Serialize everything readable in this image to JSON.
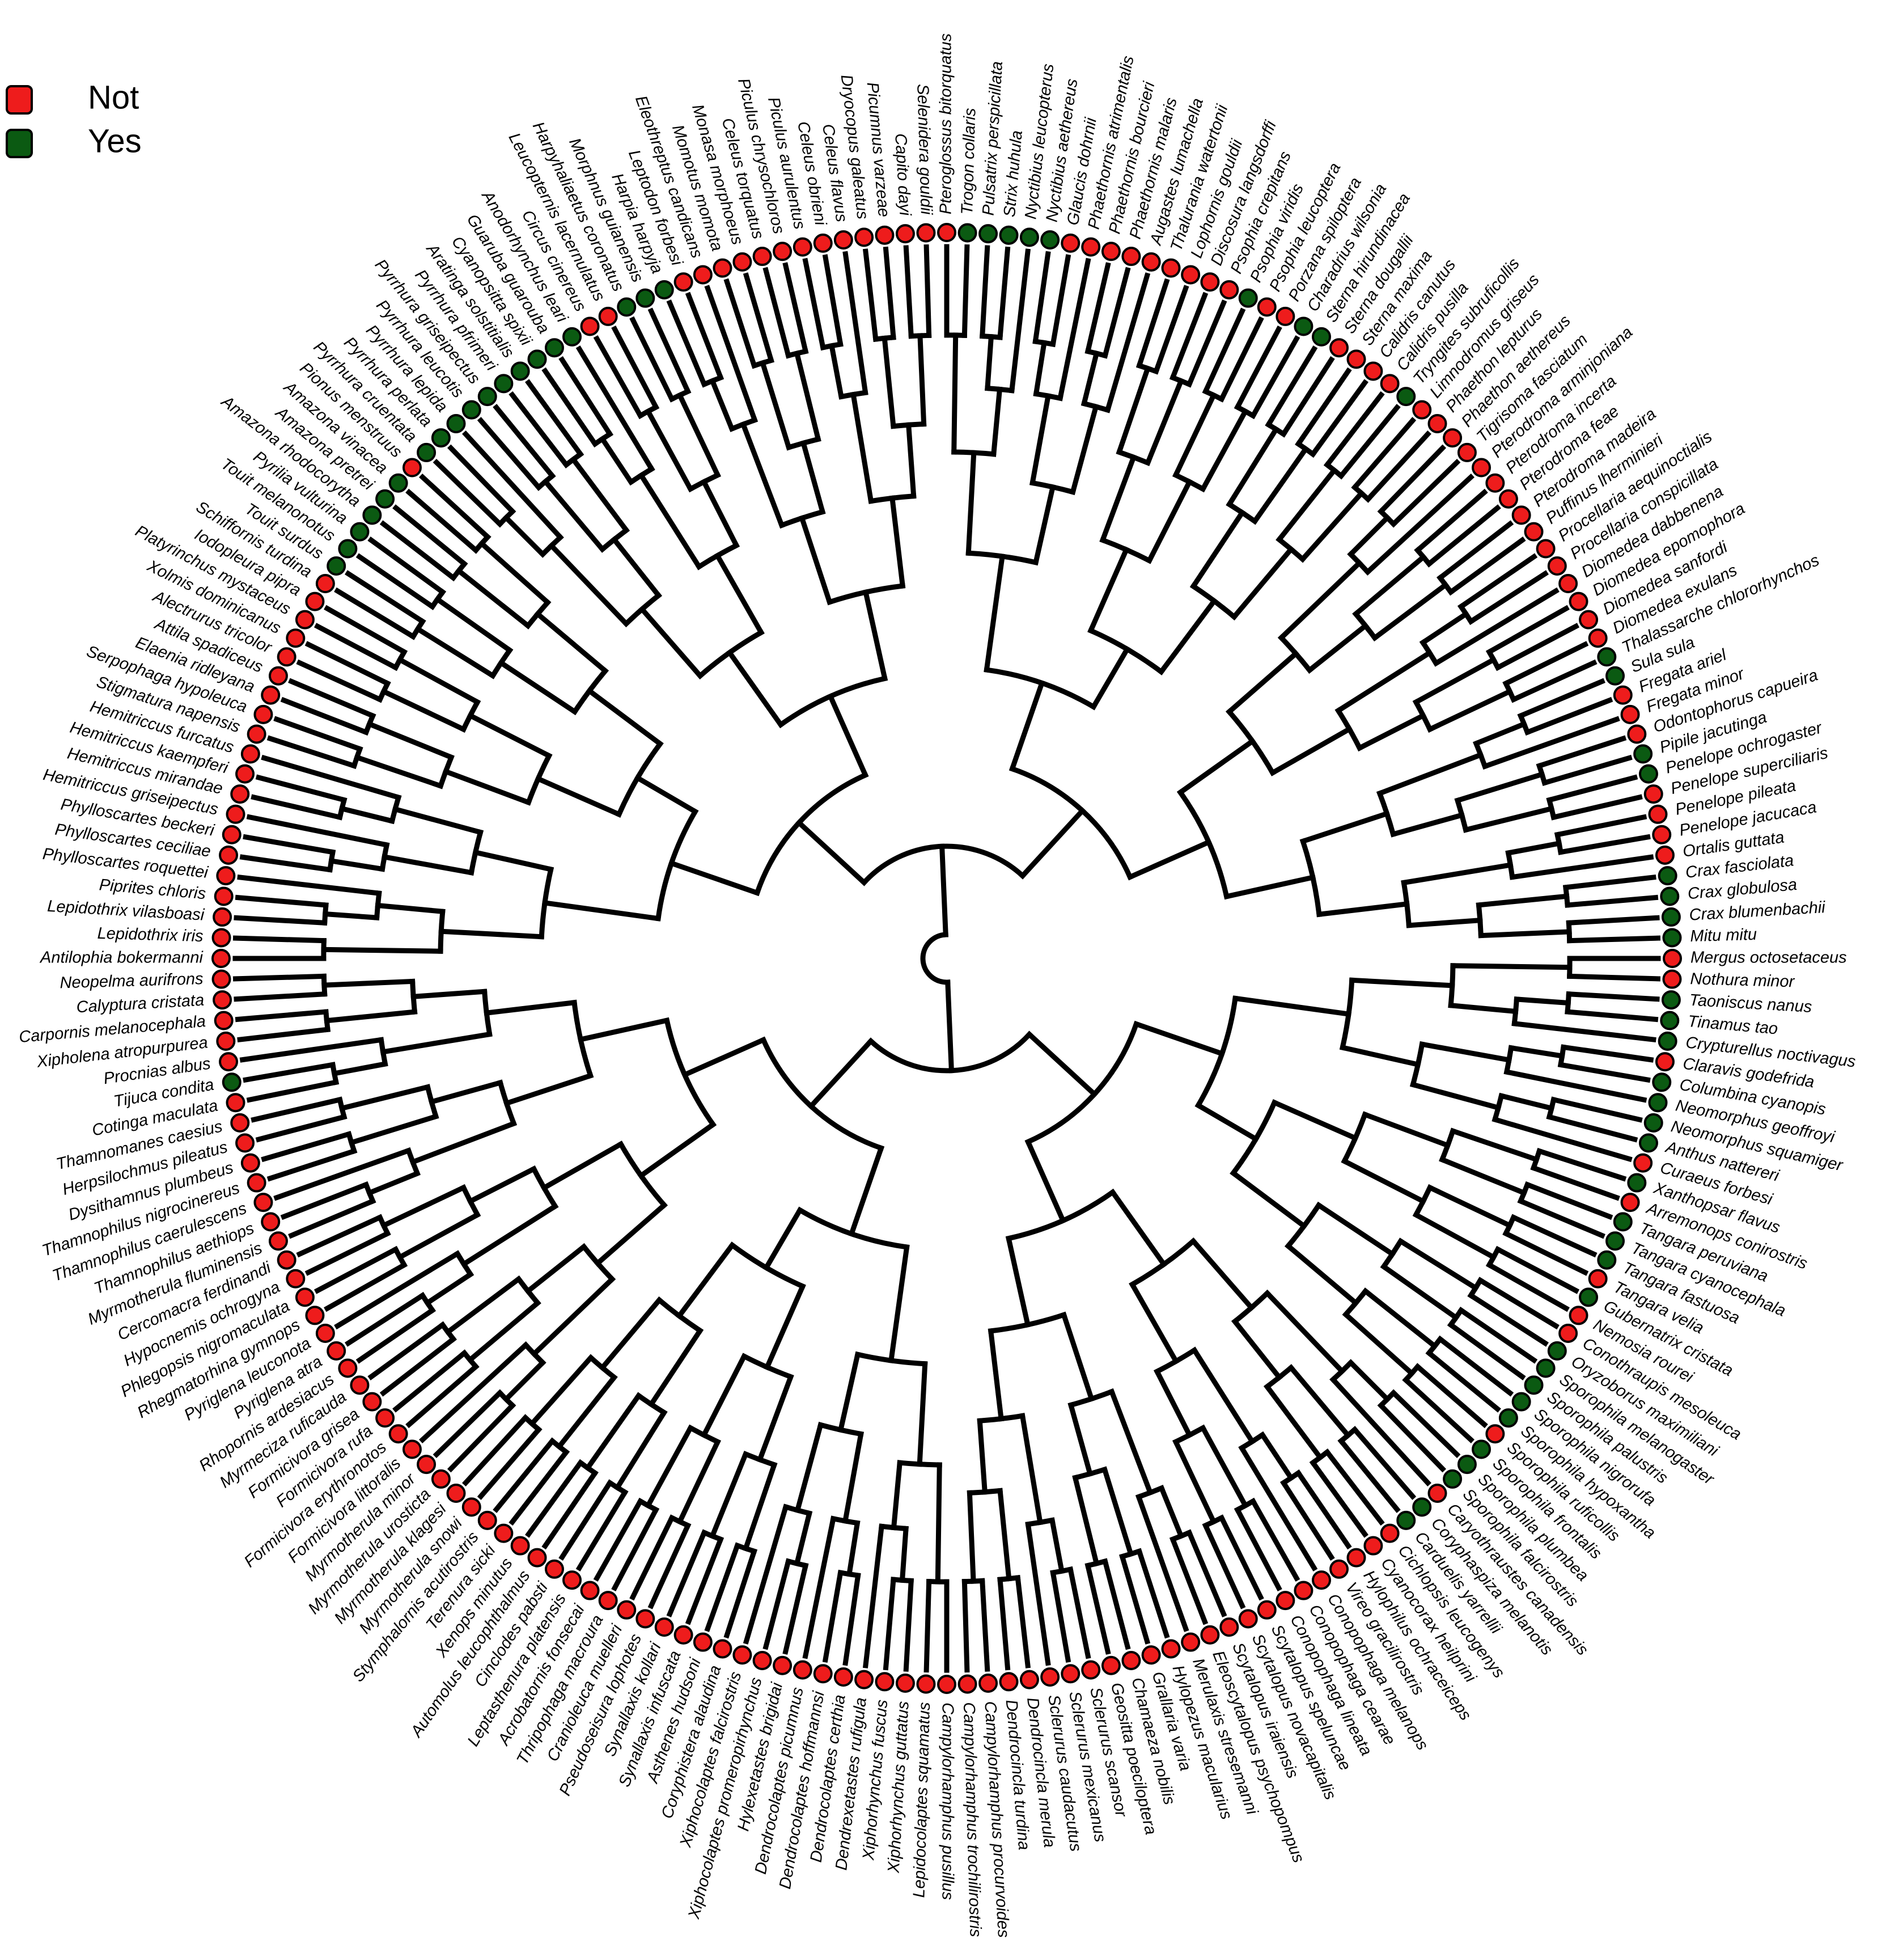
{
  "legend": {
    "items": [
      {
        "label": "Not",
        "color": "#ee1c1c"
      },
      {
        "label": "Yes",
        "color": "#0b5a12"
      }
    ]
  },
  "tips": [
    {
      "name": "Mergus octosetaceus",
      "state": "Not"
    },
    {
      "name": "Nothura minor",
      "state": "Not"
    },
    {
      "name": "Taoniscus nanus",
      "state": "Yes"
    },
    {
      "name": "Tinamus tao",
      "state": "Yes"
    },
    {
      "name": "Crypturellus noctivagus",
      "state": "Yes"
    },
    {
      "name": "Claravis godefrida",
      "state": "Not"
    },
    {
      "name": "Columbina cyanopis",
      "state": "Yes"
    },
    {
      "name": "Neomorphus geoffroyi",
      "state": "Yes"
    },
    {
      "name": "Neomorphus squamiger",
      "state": "Yes"
    },
    {
      "name": "Anthus nattereri",
      "state": "Yes"
    },
    {
      "name": "Curaeus forbesi",
      "state": "Not"
    },
    {
      "name": "Xanthopsar flavus",
      "state": "Yes"
    },
    {
      "name": "Arremonops conirostris",
      "state": "Not"
    },
    {
      "name": "Tangara peruviana",
      "state": "Yes"
    },
    {
      "name": "Tangara cyanocephala",
      "state": "Yes"
    },
    {
      "name": "Tangara fastuosa",
      "state": "Yes"
    },
    {
      "name": "Tangara velia",
      "state": "Not"
    },
    {
      "name": "Gubernatrix cristata",
      "state": "Yes"
    },
    {
      "name": "Nemosia rourei",
      "state": "Not"
    },
    {
      "name": "Conothraupis mesoleuca",
      "state": "Not"
    },
    {
      "name": "Oryzoborus maximiliani",
      "state": "Yes"
    },
    {
      "name": "Sporophila melanogaster",
      "state": "Yes"
    },
    {
      "name": "Sporophila palustris",
      "state": "Yes"
    },
    {
      "name": "Sporophila nigrorufa",
      "state": "Yes"
    },
    {
      "name": "Sporophila hypoxantha",
      "state": "Yes"
    },
    {
      "name": "Sporophila ruficollis",
      "state": "Not"
    },
    {
      "name": "Sporophila frontalis",
      "state": "Yes"
    },
    {
      "name": "Sporophila plumbea",
      "state": "Yes"
    },
    {
      "name": "Sporophila falcirostris",
      "state": "Yes"
    },
    {
      "name": "Caryothraustes canadensis",
      "state": "Not"
    },
    {
      "name": "Coryphaspiza melanotis",
      "state": "Yes"
    },
    {
      "name": "Carduelis yarrellii",
      "state": "Yes"
    },
    {
      "name": "Cichlopsis leucogenys",
      "state": "Not"
    },
    {
      "name": "Cyanocorax heilprini",
      "state": "Not"
    },
    {
      "name": "Hylophilus ochraceiceps",
      "state": "Not"
    },
    {
      "name": "Vireo gracilirostris",
      "state": "Not"
    },
    {
      "name": "Conopophaga melanops",
      "state": "Not"
    },
    {
      "name": "Conopophaga cearae",
      "state": "Not"
    },
    {
      "name": "Conopophaga lineata",
      "state": "Not"
    },
    {
      "name": "Scytalopus speluncae",
      "state": "Not"
    },
    {
      "name": "Scytalopus novacapitalis",
      "state": "Not"
    },
    {
      "name": "Scytalopus iraiensis",
      "state": "Not"
    },
    {
      "name": "Eleoscytalopus psychopompus",
      "state": "Not"
    },
    {
      "name": "Merulaxis stresemanni",
      "state": "Not"
    },
    {
      "name": "Hylopezus macularius",
      "state": "Not"
    },
    {
      "name": "Grallaria varia",
      "state": "Not"
    },
    {
      "name": "Chamaeza nobilis",
      "state": "Not"
    },
    {
      "name": "Geositta poeciloptera",
      "state": "Not"
    },
    {
      "name": "Sclerurus scansor",
      "state": "Not"
    },
    {
      "name": "Sclerurus mexicanus",
      "state": "Not"
    },
    {
      "name": "Sclerurus caudacutus",
      "state": "Not"
    },
    {
      "name": "Dendrocincla merula",
      "state": "Not"
    },
    {
      "name": "Dendrocincla turdina",
      "state": "Not"
    },
    {
      "name": "Campylorhamphus procurvoides",
      "state": "Not"
    },
    {
      "name": "Campylorhamphus trochilirostris",
      "state": "Not"
    },
    {
      "name": "Campylorhamphus pusillus",
      "state": "Not"
    },
    {
      "name": "Lepidocolaptes squamatus",
      "state": "Not"
    },
    {
      "name": "Xiphorhynchus guttatus",
      "state": "Not"
    },
    {
      "name": "Xiphorhynchus fuscus",
      "state": "Not"
    },
    {
      "name": "Dendrexetastes rufigula",
      "state": "Not"
    },
    {
      "name": "Dendrocolaptes certhia",
      "state": "Not"
    },
    {
      "name": "Dendrocolaptes hoffmannsi",
      "state": "Not"
    },
    {
      "name": "Dendrocolaptes picumnus",
      "state": "Not"
    },
    {
      "name": "Hylexetastes brigidai",
      "state": "Not"
    },
    {
      "name": "Xiphocolaptes promeropirhynchus",
      "state": "Not"
    },
    {
      "name": "Xiphocolaptes falcirostris",
      "state": "Not"
    },
    {
      "name": "Coryphistera alaudina",
      "state": "Not"
    },
    {
      "name": "Asthenes hudsoni",
      "state": "Not"
    },
    {
      "name": "Synallaxis infuscata",
      "state": "Not"
    },
    {
      "name": "Synallaxis kollari",
      "state": "Not"
    },
    {
      "name": "Pseudoseisura lophotes",
      "state": "Not"
    },
    {
      "name": "Cranioleuca muelleri",
      "state": "Not"
    },
    {
      "name": "Thripophaga macroura",
      "state": "Not"
    },
    {
      "name": "Acrobatornis fonsecai",
      "state": "Not"
    },
    {
      "name": "Leptasthenura platensis",
      "state": "Not"
    },
    {
      "name": "Cinclodes pabsti",
      "state": "Not"
    },
    {
      "name": "Automolus leucophthalmus",
      "state": "Not"
    },
    {
      "name": "Xenops minutus",
      "state": "Not"
    },
    {
      "name": "Terenura sicki",
      "state": "Not"
    },
    {
      "name": "Stymphalornis acutirostris",
      "state": "Not"
    },
    {
      "name": "Myrmotherula snowi",
      "state": "Not"
    },
    {
      "name": "Myrmotherula klagesi",
      "state": "Not"
    },
    {
      "name": "Myrmotherula urosticta",
      "state": "Not"
    },
    {
      "name": "Myrmotherula minor",
      "state": "Not"
    },
    {
      "name": "Formicivora littoralis",
      "state": "Not"
    },
    {
      "name": "Formicivora erythronotos",
      "state": "Not"
    },
    {
      "name": "Formicivora rufa",
      "state": "Not"
    },
    {
      "name": "Formicivora grisea",
      "state": "Not"
    },
    {
      "name": "Myrmeciza ruficauda",
      "state": "Not"
    },
    {
      "name": "Rhopornis ardesiacus",
      "state": "Not"
    },
    {
      "name": "Pyriglena atra",
      "state": "Not"
    },
    {
      "name": "Pyriglena leuconota",
      "state": "Not"
    },
    {
      "name": "Rhegmatorhina gymnops",
      "state": "Not"
    },
    {
      "name": "Phlegopsis nigromaculata",
      "state": "Not"
    },
    {
      "name": "Hypocnemis ochrogyna",
      "state": "Not"
    },
    {
      "name": "Cercomacra ferdinandi",
      "state": "Not"
    },
    {
      "name": "Myrmotherula fluminensis",
      "state": "Not"
    },
    {
      "name": "Thamnophilus aethiops",
      "state": "Not"
    },
    {
      "name": "Thamnophilus caerulescens",
      "state": "Not"
    },
    {
      "name": "Thamnophilus nigrocinereus",
      "state": "Not"
    },
    {
      "name": "Dysithamnus plumbeus",
      "state": "Not"
    },
    {
      "name": "Herpsilochmus pileatus",
      "state": "Not"
    },
    {
      "name": "Thamnomanes caesius",
      "state": "Not"
    },
    {
      "name": "Cotinga maculata",
      "state": "Not"
    },
    {
      "name": "Tijuca condita",
      "state": "Yes"
    },
    {
      "name": "Procnias albus",
      "state": "Not"
    },
    {
      "name": "Xipholena atropurpurea",
      "state": "Not"
    },
    {
      "name": "Carpornis melanocephala",
      "state": "Not"
    },
    {
      "name": "Calyptura cristata",
      "state": "Not"
    },
    {
      "name": "Neopelma aurifrons",
      "state": "Not"
    },
    {
      "name": "Antilophia bokermanni",
      "state": "Not"
    },
    {
      "name": "Lepidothrix iris",
      "state": "Not"
    },
    {
      "name": "Lepidothrix vilasboasi",
      "state": "Not"
    },
    {
      "name": "Piprites chloris",
      "state": "Not"
    },
    {
      "name": "Phylloscartes roquettei",
      "state": "Not"
    },
    {
      "name": "Phylloscartes ceciliae",
      "state": "Not"
    },
    {
      "name": "Phylloscartes beckeri",
      "state": "Not"
    },
    {
      "name": "Hemitriccus griseipectus",
      "state": "Not"
    },
    {
      "name": "Hemitriccus mirandae",
      "state": "Not"
    },
    {
      "name": "Hemitriccus kaempferi",
      "state": "Not"
    },
    {
      "name": "Hemitriccus furcatus",
      "state": "Not"
    },
    {
      "name": "Stigmatura napensis",
      "state": "Not"
    },
    {
      "name": "Serpophaga hypoleuca",
      "state": "Not"
    },
    {
      "name": "Elaenia ridleyana",
      "state": "Not"
    },
    {
      "name": "Attila spadiceus",
      "state": "Not"
    },
    {
      "name": "Alectrurus tricolor",
      "state": "Not"
    },
    {
      "name": "Xolmis dominicanus",
      "state": "Not"
    },
    {
      "name": "Platyrinchus mystaceus",
      "state": "Not"
    },
    {
      "name": "Iodopleura pipra",
      "state": "Not"
    },
    {
      "name": "Schiffornis turdina",
      "state": "Not"
    },
    {
      "name": "Touit surdus",
      "state": "Yes"
    },
    {
      "name": "Touit melanonotus",
      "state": "Yes"
    },
    {
      "name": "Pyrilia vulturina",
      "state": "Yes"
    },
    {
      "name": "Amazona rhodocorytha",
      "state": "Yes"
    },
    {
      "name": "Amazona pretrei",
      "state": "Yes"
    },
    {
      "name": "Amazona vinacea",
      "state": "Yes"
    },
    {
      "name": "Pionus menstruus",
      "state": "Not"
    },
    {
      "name": "Pyrrhura cruentata",
      "state": "Yes"
    },
    {
      "name": "Pyrrhura perlata",
      "state": "Yes"
    },
    {
      "name": "Pyrrhura lepida",
      "state": "Yes"
    },
    {
      "name": "Pyrrhura leucotis",
      "state": "Yes"
    },
    {
      "name": "Pyrrhura griseipectus",
      "state": "Yes"
    },
    {
      "name": "Pyrrhura pfrimeri",
      "state": "Yes"
    },
    {
      "name": "Aratinga solstitialis",
      "state": "Yes"
    },
    {
      "name": "Cyanopsitta spixii",
      "state": "Yes"
    },
    {
      "name": "Guaruba guarouba",
      "state": "Yes"
    },
    {
      "name": "Anodorhynchus leari",
      "state": "Yes"
    },
    {
      "name": "Circus cinereus",
      "state": "Not"
    },
    {
      "name": "Leucopternis lacernulatus",
      "state": "Not"
    },
    {
      "name": "Harpyhaliaetus coronatus",
      "state": "Yes"
    },
    {
      "name": "Morphnus guianensis",
      "state": "Yes"
    },
    {
      "name": "Harpia harpyja",
      "state": "Yes"
    },
    {
      "name": "Leptodon forbesi",
      "state": "Not"
    },
    {
      "name": "Eleothreptus candicans",
      "state": "Not"
    },
    {
      "name": "Momotus momota",
      "state": "Not"
    },
    {
      "name": "Monasa morphoeus",
      "state": "Not"
    },
    {
      "name": "Celeus torquatus",
      "state": "Not"
    },
    {
      "name": "Piculus chrysochloros",
      "state": "Not"
    },
    {
      "name": "Piculus aurulentus",
      "state": "Not"
    },
    {
      "name": "Celeus obrieni",
      "state": "Not"
    },
    {
      "name": "Celeus flavus",
      "state": "Not"
    },
    {
      "name": "Dryocopus galeatus",
      "state": "Not"
    },
    {
      "name": "Picumnus varzeae",
      "state": "Not"
    },
    {
      "name": "Capito dayi",
      "state": "Not"
    },
    {
      "name": "Selenidera gouldii",
      "state": "Not"
    },
    {
      "name": "Pteroglossus bitorquatus",
      "state": "Not"
    },
    {
      "name": "Trogon collaris",
      "state": "Yes"
    },
    {
      "name": "Pulsatrix perspicillata",
      "state": "Yes"
    },
    {
      "name": "Strix huhula",
      "state": "Yes"
    },
    {
      "name": "Nyctibius leucopterus",
      "state": "Yes"
    },
    {
      "name": "Nyctibius aethereus",
      "state": "Yes"
    },
    {
      "name": "Glaucis dohrnii",
      "state": "Not"
    },
    {
      "name": "Phaethornis atrimentalis",
      "state": "Not"
    },
    {
      "name": "Phaethornis bourcieri",
      "state": "Not"
    },
    {
      "name": "Phaethornis malaris",
      "state": "Not"
    },
    {
      "name": "Augastes lumachella",
      "state": "Not"
    },
    {
      "name": "Thalurania watertonii",
      "state": "Not"
    },
    {
      "name": "Lophornis gouldii",
      "state": "Not"
    },
    {
      "name": "Discosura langsdorffi",
      "state": "Not"
    },
    {
      "name": "Psophia crepitans",
      "state": "Not"
    },
    {
      "name": "Psophia viridis",
      "state": "Yes"
    },
    {
      "name": "Psophia leucoptera",
      "state": "Not"
    },
    {
      "name": "Porzana spiloptera",
      "state": "Not"
    },
    {
      "name": "Charadrius wilsonia",
      "state": "Yes"
    },
    {
      "name": "Sterna hirundinacea",
      "state": "Yes"
    },
    {
      "name": "Sterna dougallii",
      "state": "Not"
    },
    {
      "name": "Sterna maxima",
      "state": "Not"
    },
    {
      "name": "Calidris canutus",
      "state": "Not"
    },
    {
      "name": "Calidris pusilla",
      "state": "Not"
    },
    {
      "name": "Tryngites subruficollis",
      "state": "Yes"
    },
    {
      "name": "Limnodromus griseus",
      "state": "Not"
    },
    {
      "name": "Phaethon lepturus",
      "state": "Not"
    },
    {
      "name": "Phaethon aethereus",
      "state": "Not"
    },
    {
      "name": "Tigrisoma fasciatum",
      "state": "Not"
    },
    {
      "name": "Pterodroma arminjoniana",
      "state": "Not"
    },
    {
      "name": "Pterodroma incerta",
      "state": "Not"
    },
    {
      "name": "Pterodroma feae",
      "state": "Not"
    },
    {
      "name": "Pterodroma madeira",
      "state": "Not"
    },
    {
      "name": "Puffinus lherminieri",
      "state": "Not"
    },
    {
      "name": "Procellaria aequinoctialis",
      "state": "Not"
    },
    {
      "name": "Procellaria conspicillata",
      "state": "Not"
    },
    {
      "name": "Diomedea dabbenena",
      "state": "Not"
    },
    {
      "name": "Diomedea epomophora",
      "state": "Not"
    },
    {
      "name": "Diomedea sanfordi",
      "state": "Not"
    },
    {
      "name": "Diomedea exulans",
      "state": "Not"
    },
    {
      "name": "Thalassarche chlororhynchos",
      "state": "Yes"
    },
    {
      "name": "Sula sula",
      "state": "Yes"
    },
    {
      "name": "Fregata ariel",
      "state": "Not"
    },
    {
      "name": "Fregata minor",
      "state": "Not"
    },
    {
      "name": "Odontophorus capueira",
      "state": "Not"
    },
    {
      "name": "Pipile jacutinga",
      "state": "Yes"
    },
    {
      "name": "Penelope ochrogaster",
      "state": "Yes"
    },
    {
      "name": "Penelope superciliaris",
      "state": "Not"
    },
    {
      "name": "Penelope pileata",
      "state": "Not"
    },
    {
      "name": "Penelope jacucaca",
      "state": "Not"
    },
    {
      "name": "Ortalis guttata",
      "state": "Not"
    },
    {
      "name": "Crax fasciolata",
      "state": "Yes"
    },
    {
      "name": "Crax globulosa",
      "state": "Yes"
    },
    {
      "name": "Crax blumenbachii",
      "state": "Yes"
    },
    {
      "name": "Mitu mitu",
      "state": "Yes"
    }
  ]
}
